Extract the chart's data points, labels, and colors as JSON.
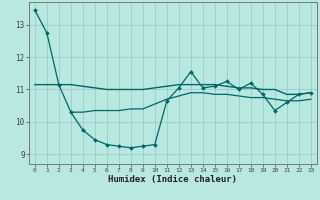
{
  "xlabel": "Humidex (Indice chaleur)",
  "xlim": [
    -0.5,
    23.5
  ],
  "ylim": [
    8.7,
    13.7
  ],
  "bg_color": "#b8e8e0",
  "grid_color": "#99cccc",
  "line_color": "#006666",
  "xticks": [
    0,
    1,
    2,
    3,
    4,
    5,
    6,
    7,
    8,
    9,
    10,
    11,
    12,
    13,
    14,
    15,
    16,
    17,
    18,
    19,
    20,
    21,
    22,
    23
  ],
  "yticks": [
    9,
    10,
    11,
    12,
    13
  ],
  "line1_x": [
    0,
    1,
    2,
    3,
    4,
    5,
    6,
    7,
    8,
    9,
    10,
    11,
    12,
    13,
    14,
    15,
    16,
    17,
    18,
    19,
    20,
    21,
    22,
    23
  ],
  "line1_y": [
    13.45,
    12.75,
    11.15,
    10.3,
    9.75,
    9.45,
    9.3,
    9.25,
    9.2,
    9.25,
    9.3,
    10.65,
    11.05,
    11.55,
    11.05,
    11.1,
    11.25,
    11.0,
    11.2,
    10.85,
    10.35,
    10.6,
    10.85,
    10.9
  ],
  "line2_x": [
    0,
    1,
    2,
    3,
    4,
    5,
    6,
    7,
    8,
    9,
    10,
    11,
    12,
    13,
    14,
    15,
    16,
    17,
    18,
    19,
    20,
    21,
    22,
    23
  ],
  "line2_y": [
    11.15,
    11.15,
    11.15,
    11.15,
    11.1,
    11.05,
    11.0,
    11.0,
    11.0,
    11.0,
    11.05,
    11.1,
    11.15,
    11.15,
    11.15,
    11.15,
    11.1,
    11.05,
    11.05,
    11.0,
    11.0,
    10.85,
    10.85,
    10.9
  ],
  "line3_x": [
    3,
    4,
    5,
    6,
    7,
    8,
    9,
    10,
    11,
    12,
    13,
    14,
    15,
    16,
    17,
    18,
    19,
    20,
    21,
    22,
    23
  ],
  "line3_y": [
    10.3,
    10.3,
    10.35,
    10.35,
    10.35,
    10.4,
    10.4,
    10.55,
    10.7,
    10.8,
    10.9,
    10.9,
    10.85,
    10.85,
    10.8,
    10.75,
    10.75,
    10.7,
    10.65,
    10.65,
    10.7
  ]
}
